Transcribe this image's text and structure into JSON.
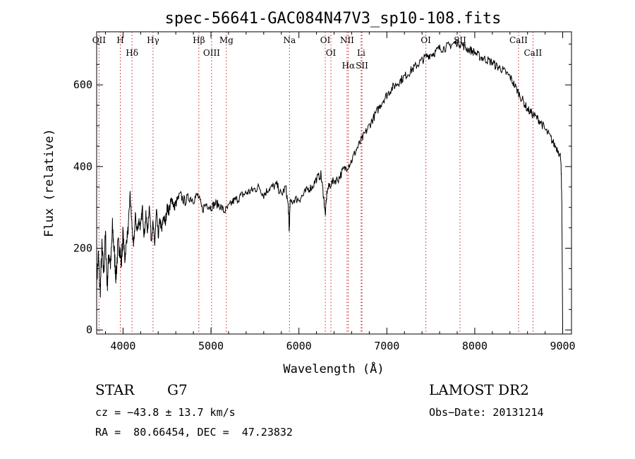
{
  "chart_data": {
    "type": "line",
    "title": "spec-56641-GAC084N47V3_sp10-108.fits",
    "xlabel": "Wavelength (Å)",
    "ylabel": "Flux (relative)",
    "xlim": [
      3700,
      9100
    ],
    "ylim": [
      -10,
      730
    ],
    "xticks": [
      4000,
      5000,
      6000,
      7000,
      8000,
      9000
    ],
    "yticks": [
      0,
      200,
      400,
      600
    ],
    "grid": false,
    "series": [
      {
        "name": "flux",
        "x": [
          3700,
          3720,
          3740,
          3760,
          3780,
          3800,
          3820,
          3840,
          3860,
          3880,
          3900,
          3920,
          3940,
          3960,
          3980,
          4000,
          4020,
          4040,
          4060,
          4080,
          4100,
          4120,
          4140,
          4160,
          4180,
          4200,
          4220,
          4240,
          4260,
          4280,
          4300,
          4320,
          4340,
          4360,
          4380,
          4400,
          4420,
          4440,
          4460,
          4480,
          4500,
          4520,
          4540,
          4560,
          4580,
          4600,
          4650,
          4700,
          4750,
          4800,
          4850,
          4900,
          4950,
          5000,
          5050,
          5100,
          5150,
          5200,
          5250,
          5300,
          5350,
          5400,
          5450,
          5500,
          5550,
          5600,
          5650,
          5700,
          5750,
          5800,
          5850,
          5880,
          5890,
          5900,
          5950,
          6000,
          6050,
          6100,
          6150,
          6200,
          6250,
          6280,
          6300,
          6320,
          6350,
          6400,
          6450,
          6500,
          6550,
          6600,
          6650,
          6700,
          6750,
          6800,
          6850,
          6900,
          6950,
          7000,
          7050,
          7100,
          7150,
          7200,
          7250,
          7300,
          7350,
          7400,
          7450,
          7500,
          7550,
          7600,
          7650,
          7700,
          7750,
          7800,
          7850,
          7900,
          7950,
          8000,
          8050,
          8100,
          8150,
          8200,
          8250,
          8300,
          8350,
          8400,
          8450,
          8500,
          8550,
          8600,
          8650,
          8700,
          8750,
          8800,
          8850,
          8900,
          8950,
          8980,
          8990,
          9000
        ],
        "y": [
          120,
          180,
          90,
          200,
          140,
          230,
          110,
          190,
          160,
          250,
          190,
          130,
          200,
          210,
          160,
          240,
          170,
          220,
          250,
          330,
          260,
          200,
          280,
          240,
          270,
          250,
          300,
          230,
          280,
          240,
          310,
          220,
          260,
          210,
          290,
          230,
          270,
          240,
          280,
          260,
          300,
          290,
          310,
          320,
          300,
          310,
          330,
          315,
          325,
          320,
          330,
          295,
          310,
          300,
          310,
          305,
          290,
          300,
          315,
          320,
          330,
          335,
          340,
          345,
          350,
          330,
          345,
          350,
          355,
          330,
          350,
          300,
          240,
          310,
          320,
          320,
          330,
          345,
          350,
          370,
          380,
          330,
          280,
          340,
          355,
          365,
          370,
          390,
          400,
          415,
          440,
          460,
          480,
          500,
          520,
          540,
          560,
          575,
          590,
          600,
          610,
          620,
          630,
          640,
          650,
          660,
          670,
          675,
          680,
          690,
          690,
          695,
          700,
          705,
          700,
          690,
          685,
          680,
          670,
          665,
          660,
          655,
          645,
          640,
          630,
          620,
          600,
          580,
          560,
          540,
          530,
          520,
          510,
          490,
          475,
          455,
          440,
          420,
          300,
          0
        ]
      }
    ],
    "annotations": [
      {
        "label": "OII",
        "wavelength": 3727
      },
      {
        "label": "H",
        "wavelength": 3969
      },
      {
        "label": "Hδ",
        "wavelength": 4102
      },
      {
        "label": "Hγ",
        "wavelength": 4341
      },
      {
        "label": "Hβ",
        "wavelength": 4862
      },
      {
        "label": "OIII",
        "wavelength": 5007
      },
      {
        "label": "Mg",
        "wavelength": 5175
      },
      {
        "label": "Na",
        "wavelength": 5893
      },
      {
        "label": "OI",
        "wavelength": 6300
      },
      {
        "label": "OI",
        "wavelength": 6364
      },
      {
        "label": "NII",
        "wavelength": 6548
      },
      {
        "label": "Hα",
        "wavelength": 6563
      },
      {
        "label": "Li",
        "wavelength": 6708
      },
      {
        "label": "SII",
        "wavelength": 6717
      },
      {
        "label": "OI",
        "wavelength": 7444
      },
      {
        "label": "SII",
        "wavelength": 7832
      },
      {
        "label": "CaII",
        "wavelength": 8498
      },
      {
        "label": "CaII",
        "wavelength": 8662
      }
    ]
  },
  "info": {
    "object_type": "STAR",
    "subclass": "G7",
    "survey": "LAMOST DR2",
    "cz": "cz = −43.8 ± 13.7 km/s",
    "obs_date": "Obs−Date: 20131214",
    "coords": "RA =  80.66454, DEC =  47.23832"
  }
}
